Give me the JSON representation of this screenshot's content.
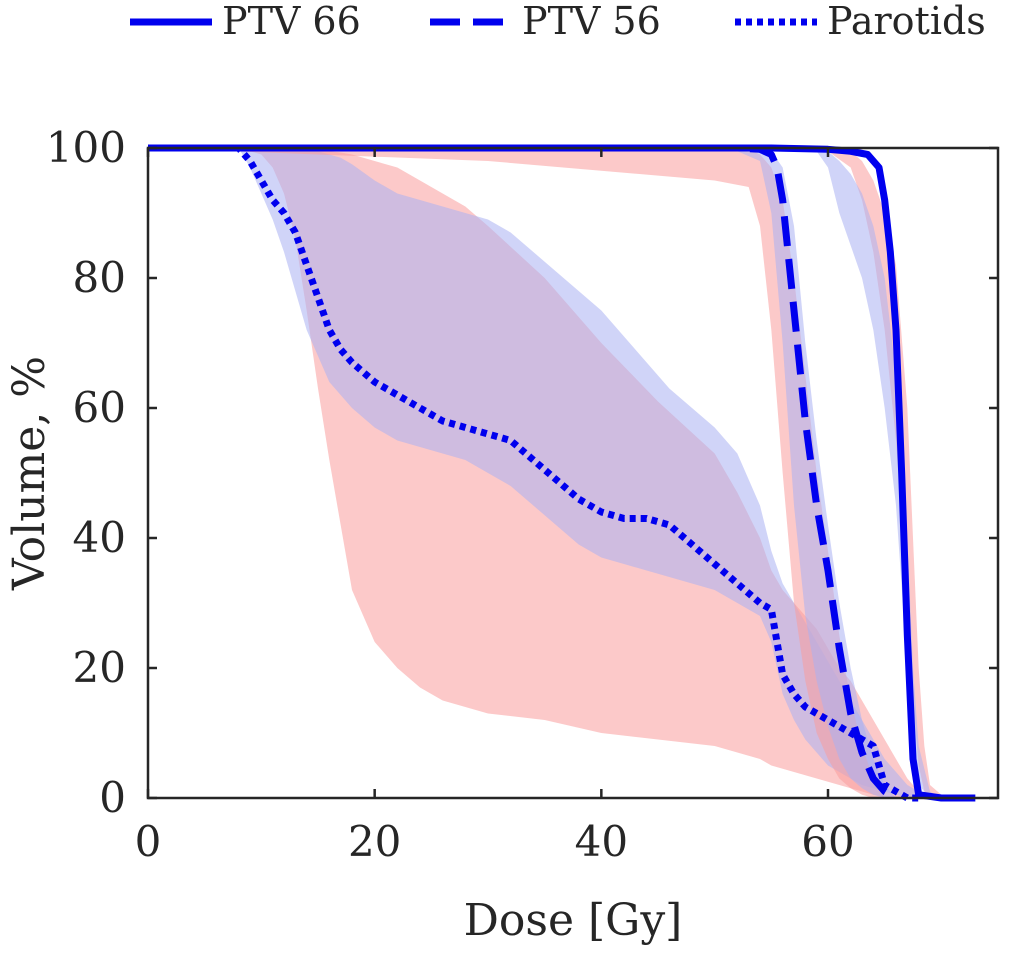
{
  "chart_data": {
    "type": "line",
    "title": "",
    "xlabel": "Dose [Gy]",
    "ylabel": "Volume, %",
    "xlim": [
      0,
      75
    ],
    "ylim": [
      0,
      100
    ],
    "xticks": [
      0,
      20,
      40,
      60
    ],
    "yticks": [
      0,
      20,
      40,
      60,
      80,
      100
    ],
    "grid": false,
    "legend_position": "top",
    "colors": {
      "line": "#0000ee",
      "band_blue": "#aab0f2",
      "band_red": "#f99d9d"
    },
    "series": [
      {
        "name": "PTV 66",
        "style": "solid",
        "x": [
          0,
          30,
          55,
          60,
          62,
          63.5,
          64.5,
          65,
          65.5,
          66,
          66.5,
          67,
          67.5,
          68,
          70,
          73
        ],
        "y": [
          100,
          100,
          100,
          99.8,
          99.5,
          99,
          97,
          92,
          84,
          72,
          50,
          25,
          6,
          0.5,
          0,
          0
        ]
      },
      {
        "name": "PTV 56",
        "style": "dashed",
        "x": [
          0,
          30,
          52,
          54,
          55,
          55.5,
          56,
          57,
          58,
          59,
          60,
          61,
          62,
          63,
          64,
          65,
          66
        ],
        "y": [
          100,
          100,
          100,
          99.8,
          99,
          97,
          92,
          75,
          58,
          45,
          35,
          23,
          13,
          7,
          3,
          1,
          0
        ]
      },
      {
        "name": "Parotids",
        "style": "dotted",
        "x": [
          0,
          8,
          9,
          10,
          11,
          12,
          13,
          14,
          15,
          16,
          17,
          18,
          20,
          22,
          24,
          26,
          28,
          30,
          32,
          34,
          36,
          38,
          40,
          42,
          44,
          46,
          48,
          50,
          52,
          54,
          55,
          55.5,
          56,
          57,
          58,
          59,
          60,
          61,
          62,
          63,
          64,
          64.5,
          65,
          66,
          67,
          68
        ],
        "y": [
          100,
          100,
          98,
          95,
          92,
          90,
          87,
          82,
          77,
          72,
          69,
          67,
          64,
          62,
          60,
          58,
          57,
          56,
          55,
          52,
          49,
          46,
          44,
          43,
          43,
          42,
          39,
          36,
          33,
          30,
          29,
          24,
          19,
          16,
          14,
          13,
          12,
          11,
          10,
          9,
          8,
          5,
          2,
          1,
          0,
          0
        ]
      }
    ],
    "bands": [
      {
        "color": "red",
        "x": [
          0,
          8,
          10,
          11,
          12,
          13,
          14,
          15,
          16,
          17,
          18,
          20,
          22,
          24,
          26,
          28,
          30,
          35,
          40,
          45,
          50,
          52,
          54,
          55,
          56,
          57,
          58,
          59,
          60,
          61,
          62,
          63,
          64,
          65,
          66,
          67,
          68,
          69,
          70,
          73
        ],
        "upper": [
          100,
          100,
          100,
          100,
          100,
          100,
          100,
          99.8,
          99.5,
          99.3,
          99,
          98,
          97,
          95,
          93,
          91,
          88,
          80,
          70,
          61,
          53,
          47,
          40,
          35,
          32,
          30,
          28,
          26,
          23,
          20,
          18,
          15,
          12,
          9,
          6,
          3,
          1,
          0.5,
          0,
          0
        ],
        "lower": [
          100,
          100,
          99,
          97,
          93,
          86,
          75,
          63,
          52,
          42,
          32,
          24,
          20,
          17,
          15,
          14,
          13,
          12,
          10,
          9,
          8,
          7,
          6,
          5,
          4.5,
          4,
          3.5,
          3,
          2.5,
          2,
          1.5,
          1,
          0.5,
          0.2,
          0,
          0,
          0,
          0,
          0,
          0
        ]
      },
      {
        "color": "blue",
        "x": [
          0,
          8,
          9,
          10,
          11,
          12,
          13,
          14,
          15,
          16,
          17,
          18,
          20,
          22,
          24,
          26,
          28,
          30,
          32,
          34,
          36,
          38,
          40,
          42,
          44,
          46,
          48,
          50,
          52,
          54,
          55,
          56,
          57,
          58,
          59,
          60,
          61,
          62,
          63,
          64,
          65,
          66,
          67,
          68,
          69,
          70
        ],
        "upper": [
          100,
          100,
          100,
          100,
          100,
          100,
          100,
          99.8,
          99.5,
          99,
          98.5,
          97.5,
          95,
          93,
          92,
          91,
          90,
          89,
          87,
          84,
          81,
          78,
          75,
          71,
          67,
          63,
          60,
          57,
          53,
          45,
          38,
          33,
          30,
          27,
          24,
          21,
          18,
          15,
          12,
          9,
          6,
          4,
          2,
          1,
          0.5,
          0
        ],
        "lower": [
          100,
          100,
          97,
          93,
          89,
          84,
          78,
          72,
          68,
          64,
          62,
          60,
          57,
          55,
          54,
          53,
          52,
          50,
          48,
          45,
          42,
          39,
          37,
          36,
          35,
          34,
          33,
          32,
          30,
          28,
          24,
          16,
          12,
          9,
          7,
          5,
          4,
          3,
          2,
          1.5,
          1,
          0.5,
          0,
          0,
          0,
          0
        ]
      },
      {
        "color": "red",
        "x": [
          0,
          30,
          50,
          53,
          54,
          55,
          56,
          57,
          58,
          59,
          60,
          61,
          62,
          63,
          64,
          65
        ],
        "upper": [
          100,
          100,
          100,
          99.8,
          99,
          97,
          92,
          80,
          65,
          50,
          38,
          25,
          15,
          8,
          3,
          0
        ],
        "lower": [
          100,
          98,
          95,
          94,
          88,
          72,
          50,
          30,
          18,
          10,
          6,
          3,
          1.5,
          0.5,
          0,
          0
        ]
      },
      {
        "color": "blue",
        "x": [
          0,
          30,
          52,
          54,
          55,
          56,
          57,
          58,
          59,
          60,
          61,
          62,
          63,
          64,
          65,
          66
        ],
        "upper": [
          100,
          100,
          100,
          99.8,
          99.5,
          97,
          88,
          70,
          55,
          42,
          30,
          20,
          12,
          6,
          2,
          0
        ],
        "lower": [
          100,
          100,
          99.5,
          98,
          90,
          70,
          45,
          28,
          18,
          11,
          6,
          3,
          1.5,
          0.5,
          0,
          0
        ]
      },
      {
        "color": "red",
        "x": [
          0,
          30,
          60,
          62,
          63,
          64,
          65,
          66,
          67,
          67.5,
          68,
          68.5,
          69,
          70,
          71
        ],
        "upper": [
          100,
          100,
          100,
          99.5,
          98,
          95,
          90,
          82,
          60,
          40,
          20,
          8,
          2,
          0.5,
          0
        ],
        "lower": [
          100,
          100,
          99.5,
          97,
          92,
          84,
          72,
          55,
          30,
          15,
          5,
          1,
          0,
          0,
          0
        ]
      },
      {
        "color": "blue",
        "x": [
          0,
          30,
          59,
          60,
          61,
          62,
          63,
          64,
          65,
          66,
          67,
          67.5,
          68,
          69,
          70
        ],
        "upper": [
          100,
          100,
          100,
          99.5,
          98,
          96,
          93,
          88,
          80,
          65,
          40,
          20,
          8,
          1,
          0
        ],
        "lower": [
          100,
          100,
          99.5,
          97,
          90,
          85,
          80,
          72,
          60,
          45,
          20,
          8,
          2,
          0,
          0
        ]
      }
    ]
  }
}
